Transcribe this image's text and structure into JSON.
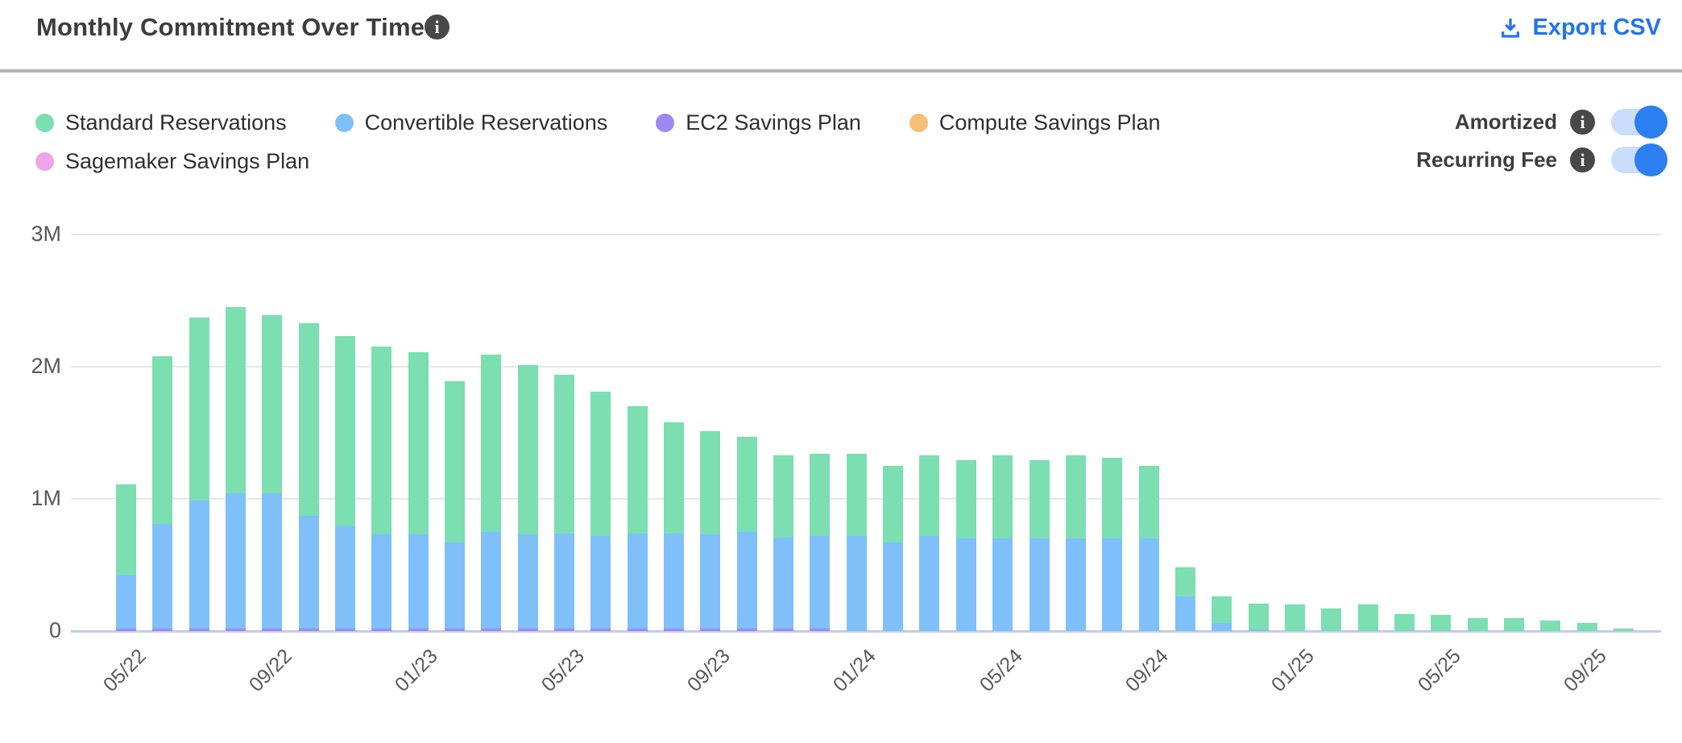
{
  "header": {
    "title": "Monthly Commitment Over Time",
    "title_info_icon": "info-circle",
    "export_label": "Export CSV"
  },
  "legend": {
    "items": [
      {
        "label": "Standard Reservations",
        "color": "#7bdfb1"
      },
      {
        "label": "Convertible Reservations",
        "color": "#7fc0fb"
      },
      {
        "label": "EC2 Savings Plan",
        "color": "#9c8af2"
      },
      {
        "label": "Compute Savings Plan",
        "color": "#f6bf75"
      },
      {
        "label": "Sagemaker Savings Plan",
        "color": "#efa4ea"
      }
    ]
  },
  "toggles": [
    {
      "label": "Amortized",
      "on": true
    },
    {
      "label": "Recurring Fee",
      "on": true
    }
  ],
  "colors": {
    "accent_blue": "#2173f0",
    "toggle_on": "#2b7ff0",
    "toggle_track": "#cadefb",
    "info_badge": "#484848",
    "gridline": "#e6e6e6",
    "axis_baseline": "#c6cce9",
    "axis_text": "#595959"
  },
  "chart_data": {
    "type": "bar",
    "stacked": true,
    "unit": "M (millions USD)",
    "title": "Monthly Commitment Over Time",
    "xlabel": "",
    "ylabel": "",
    "ylim": [
      0,
      3000000
    ],
    "y_ticks": [
      "0",
      "1M",
      "2M",
      "3M"
    ],
    "grid": true,
    "legend_position": "top-left",
    "x_tick_every": 4,
    "x_ticks_shown": [
      "05/22",
      "09/22",
      "01/23",
      "05/23",
      "09/23",
      "01/24",
      "05/24",
      "09/24",
      "01/25",
      "05/25",
      "09/25"
    ],
    "categories": [
      "05/22",
      "06/22",
      "07/22",
      "08/22",
      "09/22",
      "10/22",
      "11/22",
      "12/22",
      "01/23",
      "02/23",
      "03/23",
      "04/23",
      "05/23",
      "06/23",
      "07/23",
      "08/23",
      "09/23",
      "10/23",
      "11/23",
      "12/23",
      "01/24",
      "02/24",
      "03/24",
      "04/24",
      "05/24",
      "06/24",
      "07/24",
      "08/24",
      "09/24",
      "10/24",
      "11/24",
      "12/24",
      "01/25",
      "02/25",
      "03/25",
      "04/25",
      "05/25",
      "06/25",
      "07/25",
      "08/25",
      "09/25",
      "10/25"
    ],
    "stack_order_bottom_to_top": [
      "EC2 Savings Plan",
      "Convertible Reservations",
      "Standard Reservations",
      "Compute Savings Plan",
      "Sagemaker Savings Plan"
    ],
    "series": [
      {
        "name": "Standard Reservations",
        "color": "#7bdfb1",
        "values": [
          0.69,
          1.27,
          1.38,
          1.41,
          1.35,
          1.46,
          1.44,
          1.42,
          1.38,
          1.22,
          1.34,
          1.28,
          1.2,
          1.09,
          0.96,
          0.84,
          0.78,
          0.72,
          0.62,
          0.62,
          0.62,
          0.58,
          0.61,
          0.59,
          0.63,
          0.59,
          0.63,
          0.61,
          0.55,
          0.22,
          0.2,
          0.2,
          0.2,
          0.17,
          0.2,
          0.13,
          0.12,
          0.1,
          0.1,
          0.08,
          0.06,
          0.02
        ]
      },
      {
        "name": "Convertible Reservations",
        "color": "#7fc0fb",
        "values": [
          0.4,
          0.79,
          0.97,
          1.02,
          1.02,
          0.85,
          0.77,
          0.71,
          0.71,
          0.65,
          0.73,
          0.71,
          0.72,
          0.7,
          0.72,
          0.72,
          0.71,
          0.73,
          0.69,
          0.7,
          0.72,
          0.67,
          0.72,
          0.7,
          0.7,
          0.7,
          0.7,
          0.7,
          0.7,
          0.26,
          0.06,
          0.01,
          0,
          0,
          0,
          0,
          0,
          0,
          0,
          0,
          0,
          0
        ]
      },
      {
        "name": "EC2 Savings Plan",
        "color": "#9c8af2",
        "values": [
          0.02,
          0.02,
          0.02,
          0.02,
          0.02,
          0.02,
          0.02,
          0.02,
          0.02,
          0.02,
          0.02,
          0.02,
          0.02,
          0.02,
          0.02,
          0.02,
          0.02,
          0.02,
          0.02,
          0.02,
          0,
          0,
          0,
          0,
          0,
          0,
          0,
          0,
          0,
          0,
          0,
          0,
          0,
          0,
          0,
          0,
          0,
          0,
          0,
          0,
          0,
          0
        ]
      },
      {
        "name": "Compute Savings Plan",
        "color": "#f6bf75",
        "values": [
          0,
          0,
          0,
          0,
          0,
          0,
          0,
          0,
          0,
          0,
          0,
          0,
          0,
          0,
          0,
          0,
          0,
          0,
          0,
          0,
          0,
          0,
          0,
          0,
          0,
          0,
          0,
          0,
          0,
          0,
          0,
          0,
          0,
          0,
          0,
          0,
          0,
          0,
          0,
          0,
          0,
          0
        ]
      },
      {
        "name": "Sagemaker Savings Plan",
        "color": "#efa4ea",
        "values": [
          0,
          0,
          0,
          0,
          0,
          0,
          0,
          0,
          0,
          0,
          0,
          0,
          0,
          0,
          0,
          0,
          0,
          0,
          0,
          0,
          0,
          0,
          0,
          0,
          0,
          0,
          0,
          0,
          0,
          0,
          0,
          0,
          0,
          0,
          0,
          0,
          0,
          0,
          0,
          0,
          0,
          0
        ]
      }
    ],
    "values_unit_note": "values are in millions, read against 1M/2M/3M gridlines"
  }
}
